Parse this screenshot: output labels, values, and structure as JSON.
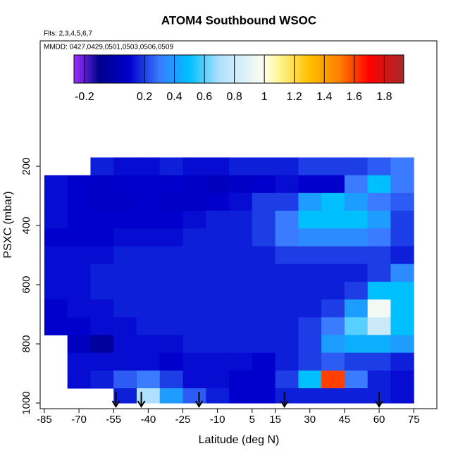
{
  "chart_data": {
    "type": "heatmap",
    "title": "ATOM4 Southbound WSOC",
    "subtitle": "Flts: 2,3,4,5,6,7",
    "annotation": "MMDD: 0427,0429,0501,0503,0506,0509",
    "xlabel": "Latitude (deg N)",
    "ylabel": "PSXC (mbar)",
    "xlim": [
      -86.8,
      85
    ],
    "ylim": [
      1019,
      -224
    ],
    "xticks": [
      -85,
      -70,
      -55,
      -40,
      -25,
      -10,
      5,
      15,
      30,
      45,
      60,
      75
    ],
    "yticks": [
      200,
      400,
      600,
      800,
      1000
    ],
    "x_edges": [
      -85,
      -75,
      -65,
      -55,
      -45,
      -35,
      -25,
      -15,
      -5,
      5,
      15,
      25,
      35,
      45,
      55,
      65,
      75
    ],
    "y_edges": [
      170,
      230,
      290,
      350,
      410,
      470,
      530,
      590,
      650,
      710,
      770,
      830,
      890,
      950,
      1000
    ],
    "z": [
      [
        null,
        null,
        0.15,
        0.12,
        0.12,
        0.15,
        0.12,
        0.12,
        0.15,
        0.15,
        0.15,
        0.2,
        0.2,
        0.2,
        0.25,
        0.3
      ],
      [
        0.12,
        0.1,
        0.08,
        0.1,
        0.1,
        0.1,
        0.08,
        0.05,
        0.08,
        0.1,
        0.12,
        0.1,
        0.1,
        0.3,
        0.5,
        0.3
      ],
      [
        0.12,
        0.1,
        0.08,
        0.08,
        0.1,
        0.08,
        0.08,
        0.1,
        0.12,
        0.2,
        0.2,
        0.4,
        0.5,
        0.4,
        0.3,
        0.25
      ],
      [
        0.12,
        0.1,
        0.1,
        0.1,
        0.1,
        0.1,
        0.12,
        0.15,
        0.15,
        0.2,
        0.3,
        0.5,
        0.5,
        0.5,
        0.4,
        0.2
      ],
      [
        0.1,
        0.1,
        0.1,
        0.12,
        0.12,
        0.12,
        0.15,
        0.15,
        0.15,
        0.2,
        0.3,
        0.35,
        0.35,
        0.35,
        0.3,
        0.2
      ],
      [
        0.12,
        0.12,
        0.12,
        0.15,
        0.15,
        0.15,
        0.15,
        0.15,
        0.15,
        0.15,
        0.2,
        0.2,
        0.2,
        0.2,
        0.2,
        0.15
      ],
      [
        0.12,
        0.12,
        0.15,
        0.15,
        0.15,
        0.15,
        0.15,
        0.15,
        0.15,
        0.15,
        0.15,
        0.15,
        0.15,
        0.15,
        0.2,
        0.35
      ],
      [
        0.12,
        0.12,
        0.15,
        0.15,
        0.15,
        0.15,
        0.15,
        0.15,
        0.15,
        0.15,
        0.15,
        0.15,
        0.15,
        0.2,
        0.5,
        0.5
      ],
      [
        0.1,
        0.12,
        0.12,
        0.15,
        0.15,
        0.15,
        0.15,
        0.15,
        0.15,
        0.15,
        0.15,
        0.15,
        0.2,
        0.4,
        0.95,
        0.5
      ],
      [
        0.1,
        0.1,
        0.12,
        0.12,
        0.15,
        0.15,
        0.15,
        0.15,
        0.15,
        0.15,
        0.15,
        0.2,
        0.3,
        0.6,
        0.8,
        0.5
      ],
      [
        null,
        0.05,
        -0.05,
        0.12,
        0.12,
        0.12,
        0.15,
        0.15,
        0.15,
        0.15,
        0.15,
        0.2,
        0.4,
        0.45,
        0.45,
        0.4
      ],
      [
        null,
        0.12,
        0.12,
        0.12,
        0.12,
        0.1,
        0.12,
        0.12,
        0.12,
        0.1,
        0.15,
        0.2,
        0.25,
        0.2,
        0.2,
        0.15
      ],
      [
        null,
        0.12,
        0.15,
        0.25,
        0.3,
        0.2,
        0.12,
        0.12,
        0.1,
        0.1,
        0.2,
        0.5,
        1.6,
        0.3,
        0.15,
        0.12
      ],
      [
        null,
        null,
        null,
        0.15,
        0.7,
        0.4,
        0.25,
        0.15,
        0.1,
        0.1,
        0.15,
        0.15,
        0.15,
        0.15,
        0.15,
        0.12
      ]
    ],
    "arrows": [
      -54,
      -43,
      -18,
      19,
      60
    ],
    "colorbar": {
      "lim": [
        -0.27,
        1.93
      ],
      "ticks": [
        -0.2,
        0.2,
        0.4,
        0.6,
        0.8,
        1.0,
        1.2,
        1.4,
        1.6,
        1.8
      ],
      "stops": [
        {
          "value": -0.27,
          "color": "#9b30ff"
        },
        {
          "value": -0.1,
          "color": "#00008b"
        },
        {
          "value": 0.1,
          "color": "#0000cd"
        },
        {
          "value": 0.3,
          "color": "#3a7bff"
        },
        {
          "value": 0.5,
          "color": "#00bfff"
        },
        {
          "value": 0.7,
          "color": "#b0e0ff"
        },
        {
          "value": 1.0,
          "color": "#fffff0"
        },
        {
          "value": 1.1,
          "color": "#fff68f"
        },
        {
          "value": 1.3,
          "color": "#ffc000"
        },
        {
          "value": 1.5,
          "color": "#ff8000"
        },
        {
          "value": 1.7,
          "color": "#ff0000"
        },
        {
          "value": 1.93,
          "color": "#a52a2a"
        }
      ]
    }
  }
}
